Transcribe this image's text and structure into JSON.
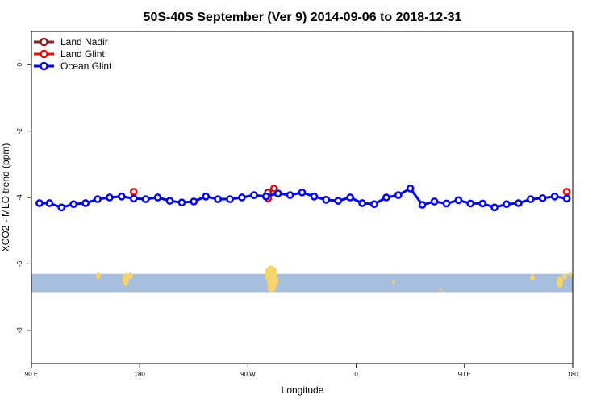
{
  "chart_data": {
    "type": "line",
    "title": "50S-40S September (Ver 9)   2014-09-06 to 2018-12-31",
    "xlabel": "Longitude",
    "ylabel": "XCO2 - MLO trend (ppm)",
    "xlim": [
      -90,
      180
    ],
    "ylim": [
      -9,
      1
    ],
    "x_ticks": [
      {
        "value": -90,
        "label": "90 E"
      },
      {
        "value": -36,
        "label": "180"
      },
      {
        "value": 18,
        "label": "90 W"
      },
      {
        "value": 72,
        "label": "0"
      },
      {
        "value": 126,
        "label": "90 E"
      },
      {
        "value": 180,
        "label": "180"
      }
    ],
    "y_ticks": [
      {
        "value": 0,
        "label": "0"
      },
      {
        "value": -2,
        "label": "-2"
      },
      {
        "value": -4,
        "label": "-4"
      },
      {
        "value": -6,
        "label": "-6"
      },
      {
        "value": -8,
        "label": "-8"
      }
    ],
    "series": [
      {
        "name": "Land Nadir",
        "color": "#8b2323",
        "line": false,
        "x": [
          28
        ],
        "y": [
          -3.85
        ]
      },
      {
        "name": "Land Glint",
        "color": "#ff0000",
        "line": false,
        "x": [
          -39,
          28,
          31,
          177
        ],
        "y": [
          -3.83,
          -4.03,
          -3.73,
          -3.83
        ]
      },
      {
        "name": "Ocean Glint",
        "color": "#0000ff",
        "line": true,
        "x": [
          -86,
          -81,
          -75,
          -69,
          -63,
          -57,
          -51,
          -45,
          -39,
          -33,
          -27,
          -21,
          -15,
          -9,
          -3,
          3,
          9,
          15,
          21,
          27,
          33,
          39,
          45,
          51,
          57,
          63,
          69,
          75,
          81,
          87,
          93,
          99,
          105,
          111,
          117,
          123,
          129,
          135,
          141,
          147,
          153,
          159,
          165,
          171,
          177
        ],
        "y": [
          -4.17,
          -4.17,
          -4.3,
          -4.2,
          -4.17,
          -4.05,
          -4.0,
          -3.97,
          -4.03,
          -4.05,
          -4.0,
          -4.1,
          -4.15,
          -4.12,
          -3.97,
          -4.05,
          -4.05,
          -4.0,
          -3.93,
          -3.97,
          -3.88,
          -3.93,
          -3.85,
          -3.97,
          -4.07,
          -4.1,
          -4.0,
          -4.17,
          -4.2,
          -4.0,
          -3.93,
          -3.73,
          -4.22,
          -4.12,
          -4.18,
          -4.08,
          -4.18,
          -4.18,
          -4.3,
          -4.2,
          -4.17,
          -4.05,
          -4.02,
          -3.97,
          -4.03
        ]
      }
    ],
    "legend": {
      "position": "top-left",
      "entries": [
        "Land Nadir",
        "Land Glint",
        "Ocean Glint"
      ]
    },
    "map_band": {
      "ocean_color": "#a7bedc",
      "land_color": "#f5d56a",
      "y_range": [
        -6.3,
        -6.85
      ]
    },
    "grid": false
  }
}
